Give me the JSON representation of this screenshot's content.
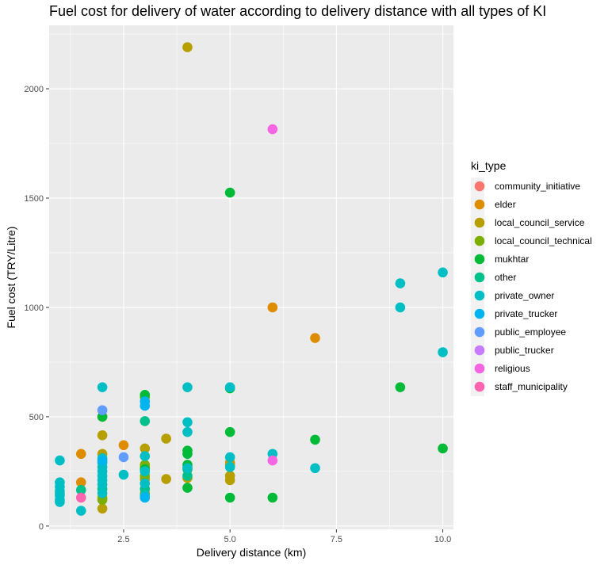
{
  "chart_data": {
    "type": "scatter",
    "title": "Fuel cost for delivery of water according to delivery distance with all types of KI",
    "xlabel": "Delivery distance (km)",
    "ylabel": "Fuel cost (TRY/Litre)",
    "xlim": [
      0.75,
      10.25
    ],
    "ylim": [
      -15,
      2290
    ],
    "x_ticks": [
      2.5,
      5.0,
      7.5,
      10.0
    ],
    "x_tick_labels": [
      "2.5",
      "5.0",
      "7.5",
      "10.0"
    ],
    "y_ticks": [
      0,
      500,
      1000,
      1500,
      2000
    ],
    "y_tick_labels": [
      "0",
      "500",
      "1000",
      "1500",
      "2000"
    ],
    "grid": true,
    "legend_position": "right",
    "legend_title": "ki_type",
    "series": [
      {
        "name": "community_initiative",
        "color": "#F8766D",
        "points": []
      },
      {
        "name": "elder",
        "color": "#DE8C00",
        "points": [
          [
            1.5,
            330
          ],
          [
            1.5,
            200
          ],
          [
            2.5,
            370
          ],
          [
            6,
            1000
          ],
          [
            7,
            860
          ],
          [
            5,
            290
          ]
        ]
      },
      {
        "name": "local_council_service",
        "color": "#B79F00",
        "points": [
          [
            4,
            2190
          ],
          [
            2,
            415
          ],
          [
            2,
            330
          ],
          [
            2,
            80
          ],
          [
            2,
            130
          ],
          [
            3,
            355
          ],
          [
            3,
            270
          ],
          [
            3,
            215
          ],
          [
            3,
            150
          ],
          [
            3.5,
            400
          ],
          [
            3.5,
            215
          ],
          [
            4,
            220
          ],
          [
            5,
            230
          ],
          [
            5,
            210
          ],
          [
            5,
            280
          ]
        ]
      },
      {
        "name": "local_council_technical",
        "color": "#7CAE00",
        "points": [
          [
            2,
            500
          ],
          [
            2,
            120
          ],
          [
            3,
            590
          ],
          [
            3,
            230
          ],
          [
            3,
            280
          ],
          [
            4,
            270
          ]
        ]
      },
      {
        "name": "mukhtar",
        "color": "#00BA38",
        "points": [
          [
            5,
            1525
          ],
          [
            2,
            500
          ],
          [
            3,
            600
          ],
          [
            3,
            260
          ],
          [
            4,
            345
          ],
          [
            4,
            330
          ],
          [
            4,
            280
          ],
          [
            4,
            260
          ],
          [
            4,
            175
          ],
          [
            5,
            630
          ],
          [
            5,
            430
          ],
          [
            5,
            130
          ],
          [
            6,
            130
          ],
          [
            7,
            395
          ],
          [
            9,
            635
          ],
          [
            10,
            355
          ]
        ]
      },
      {
        "name": "other",
        "color": "#00C08B",
        "points": [
          [
            1,
            150
          ],
          [
            1.5,
            165
          ],
          [
            2,
            170
          ],
          [
            3,
            480
          ],
          [
            3,
            170
          ],
          [
            4,
            230
          ]
        ]
      },
      {
        "name": "private_owner",
        "color": "#00BFC4",
        "points": [
          [
            1,
            300
          ],
          [
            1,
            200
          ],
          [
            1,
            180
          ],
          [
            1,
            160
          ],
          [
            1,
            140
          ],
          [
            1,
            120
          ],
          [
            1,
            110
          ],
          [
            1.5,
            70
          ],
          [
            2,
            635
          ],
          [
            2,
            310
          ],
          [
            2,
            290
          ],
          [
            2,
            270
          ],
          [
            2,
            250
          ],
          [
            2,
            230
          ],
          [
            2,
            210
          ],
          [
            2,
            190
          ],
          [
            2,
            150
          ],
          [
            2.5,
            235
          ],
          [
            3,
            320
          ],
          [
            3,
            250
          ],
          [
            3,
            195
          ],
          [
            3,
            140
          ],
          [
            4,
            635
          ],
          [
            4,
            475
          ],
          [
            4,
            430
          ],
          [
            4,
            265
          ],
          [
            5,
            635
          ],
          [
            5,
            315
          ],
          [
            5,
            270
          ],
          [
            6,
            330
          ],
          [
            7,
            265
          ],
          [
            9,
            1110
          ],
          [
            9,
            1000
          ],
          [
            10,
            1160
          ],
          [
            10,
            795
          ]
        ]
      },
      {
        "name": "private_trucker",
        "color": "#00B4F0",
        "points": [
          [
            2,
            300
          ],
          [
            3,
            570
          ],
          [
            3,
            550
          ],
          [
            3,
            130
          ]
        ]
      },
      {
        "name": "public_employee",
        "color": "#619CFF",
        "points": [
          [
            2,
            530
          ],
          [
            2.5,
            315
          ]
        ]
      },
      {
        "name": "public_trucker",
        "color": "#C77CFF",
        "points": []
      },
      {
        "name": "religious",
        "color": "#F564E3",
        "points": [
          [
            6,
            1815
          ],
          [
            6,
            300
          ]
        ]
      },
      {
        "name": "staff_municipality",
        "color": "#FF64B0",
        "points": [
          [
            1.5,
            130
          ]
        ]
      }
    ]
  }
}
